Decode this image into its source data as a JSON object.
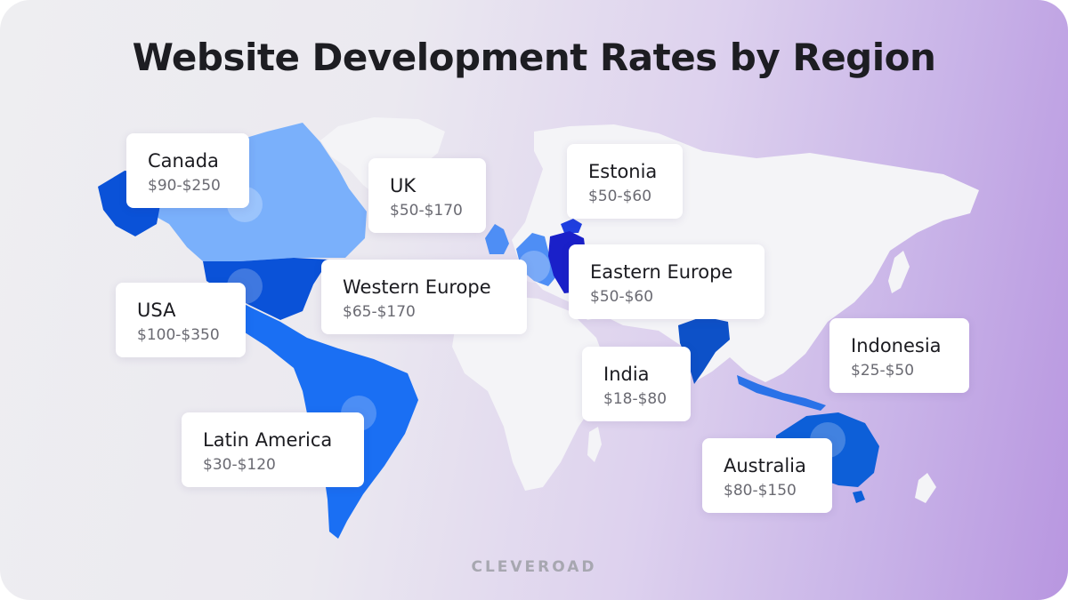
{
  "title": "Website Development Rates by Region",
  "brand": "CLEVEROAD",
  "colors": {
    "land": "#f4f4f7",
    "canada": "#7ab0fb",
    "usa": "#0a52d8",
    "latin_america": "#1a6ff3",
    "uk_western_europe": "#4e8ef5",
    "estonia": "#1f3fe0",
    "eastern_europe": "#1a20c9",
    "india": "#0d51c8",
    "indonesia": "#2a72e8",
    "australia": "#0d5fd8"
  },
  "regions": [
    {
      "name": "Canada",
      "rate": "$90-$250"
    },
    {
      "name": "UK",
      "rate": "$50-$170"
    },
    {
      "name": "Estonia",
      "rate": "$50-$60"
    },
    {
      "name": "Eastern Europe",
      "rate": "$50-$60"
    },
    {
      "name": "Western Europe",
      "rate": "$65-$170"
    },
    {
      "name": "USA",
      "rate": "$100-$350"
    },
    {
      "name": "India",
      "rate": "$18-$80"
    },
    {
      "name": "Indonesia",
      "rate": "$25-$50"
    },
    {
      "name": "Latin America",
      "rate": "$30-$120"
    },
    {
      "name": "Australia",
      "rate": "$80-$150"
    }
  ]
}
